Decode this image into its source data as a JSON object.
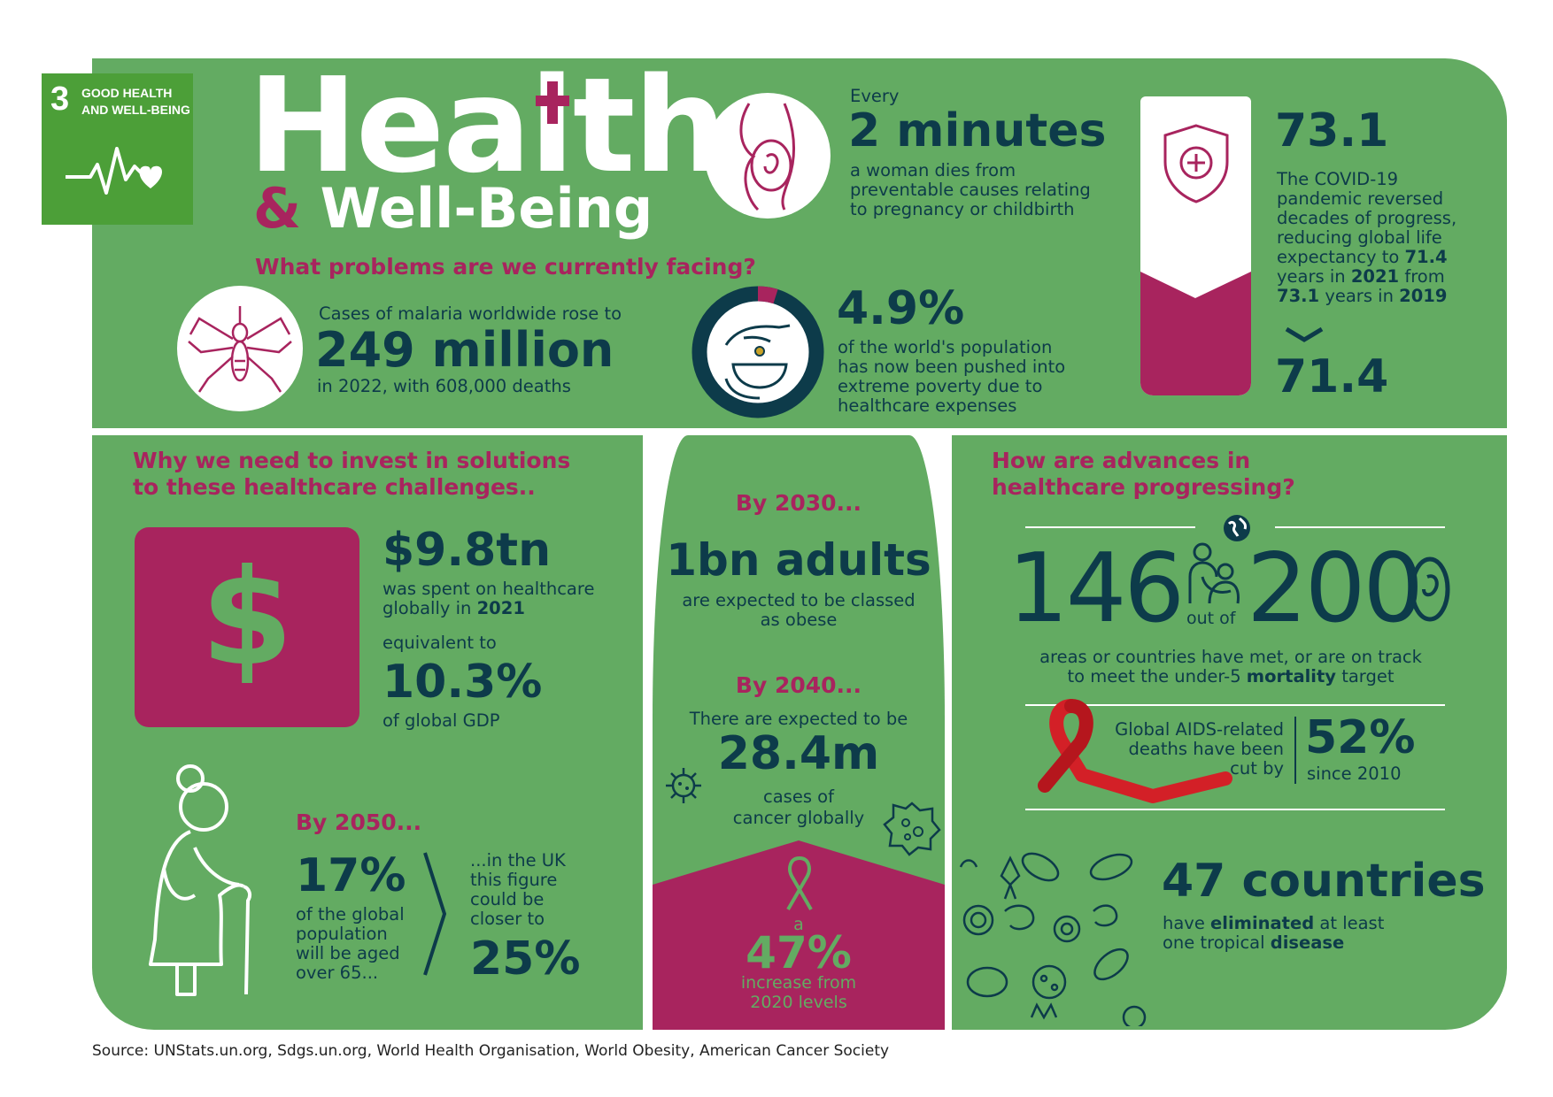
{
  "sdg": {
    "number": "3",
    "label_line1": "GOOD HEALTH",
    "label_line2": "AND WELL-BEING",
    "icon": "heartbeat-heart-icon"
  },
  "title": {
    "main": "Health",
    "sub_amp": "&",
    "sub": "Well-Being"
  },
  "top": {
    "question": "What problems are we currently facing?",
    "pregnancy": {
      "every": "Every",
      "value": "2 minutes",
      "line1": "a woman dies from",
      "line2": "preventable causes relating",
      "line3": "to pregnancy or childbirth",
      "icon": "pregnant-woman-icon"
    },
    "malaria": {
      "line1": "Cases of malaria worldwide rose to",
      "value": "249 million",
      "line2": "in 2022, with 608,000 deaths",
      "icon": "mosquito-icon"
    },
    "poverty": {
      "value": "4.9%",
      "fraction": 0.049,
      "line1": "of the world's population",
      "line2": "has now been pushed into",
      "line3": "extreme poverty due to",
      "line4": "healthcare expenses",
      "icon": "hand-coin-bowl-icon"
    },
    "life": {
      "value_top": "73.1",
      "value_bottom": "71.4",
      "t1": "The COVID-19",
      "t2": "pandemic reversed",
      "t3": "decades of progress,",
      "t4": "reducing global life",
      "t5a": "expectancy to ",
      "t5b": "71.4",
      "t6a": "years in ",
      "t6b": "2021",
      "t6c": " from",
      "t7a": "73.1",
      "t7b": " years in ",
      "t7c": "2019",
      "icon": "shield-plus-icon",
      "arrow": "chevron-down-icon"
    }
  },
  "invest": {
    "question_l1": "Why we need to invest in solutions",
    "question_l2": "to these healthcare challenges..",
    "spent": {
      "value": "$9.8tn",
      "l1": "was spent on healthcare",
      "l2a": "globally in ",
      "l2b": "2021",
      "eq": "equivalent to",
      "pct": "10.3%",
      "of": "of global GDP",
      "icon": "dollar-icon"
    },
    "aging": {
      "by": "By 2050...",
      "pct": "17%",
      "l1": "of the global",
      "l2": "population",
      "l3": "will be aged",
      "l4": "over 65...",
      "uk1": "...in the UK",
      "uk2": "this figure",
      "uk3": "could be",
      "uk4": "closer to",
      "uk_pct": "25%",
      "icon": "elderly-woman-icon"
    }
  },
  "middle": {
    "by2030": "By 2030...",
    "adults": "1bn adults",
    "adults_l1": "are expected to be classed",
    "adults_l2": "as obese",
    "by2040": "By 2040...",
    "cancer_l0": "There are expected to be",
    "cancer": "28.4m",
    "cancer_l1": "cases of",
    "cancer_l2": "cancer globally",
    "a": "a",
    "increase": "47%",
    "inc_l1": "increase from",
    "inc_l2": "2020 levels",
    "icon": "cancer-ribbon-icon"
  },
  "advances": {
    "question_l1": "How are advances in",
    "question_l2": "healthcare progressing?",
    "n1": "146",
    "outof": "out of",
    "n2": "200",
    "m1": "areas or countries have met, or are on track",
    "m2a": "to meet the under-5 ",
    "m2b": "mortality",
    "m2c": " target",
    "aids_l1": "Global AIDS-related",
    "aids_l2": "deaths have been",
    "aids_l3": "cut by",
    "aids_pct": "52%",
    "aids_since": "since 2010",
    "countries": "47 countries",
    "c1a": "have ",
    "c1b": "eliminated",
    "c1c": " at least",
    "c2a": "one tropical ",
    "c2b": "disease",
    "icons": [
      "globe-icon",
      "mother-child-icon",
      "aids-ribbon-icon",
      "bacteria-icon"
    ]
  },
  "source": "Source: UNStats.un.org, Sdgs.un.org, World Health Organisation, World Obesity, American Cancer Society",
  "colors": {
    "green": "#63ab62",
    "magenta": "#a8245e",
    "navy": "#0d3b4a",
    "sdg_green": "#4c9f38"
  }
}
